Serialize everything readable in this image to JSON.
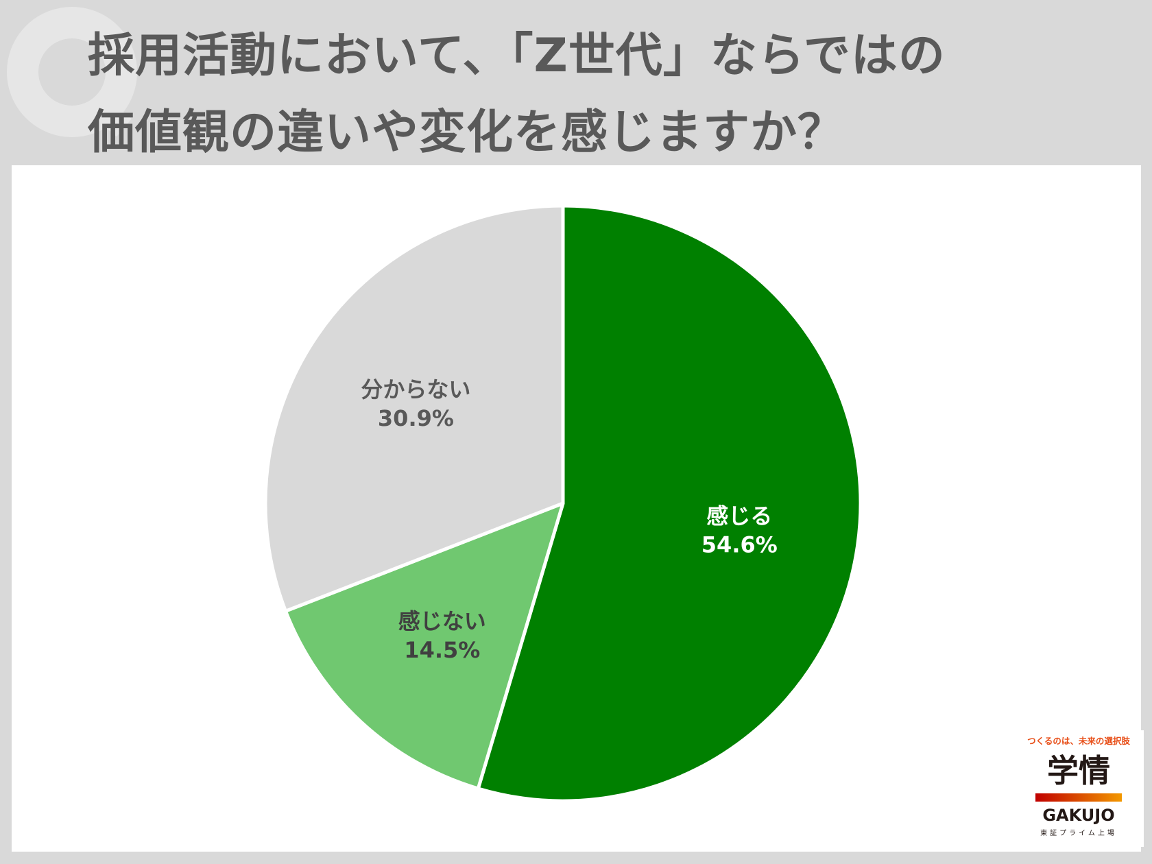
{
  "title": {
    "line1": "採用活動において、「Z世代」ならではの",
    "line2": "価値観の違いや変化を感じますか？"
  },
  "colors": {
    "background": "#d9d9d9",
    "panel": "#ffffff",
    "title_text": "#595959",
    "q_mark": "#e6e6e6"
  },
  "chart_data": {
    "type": "pie",
    "start_angle": "12 o'clock",
    "direction": "clockwise",
    "slices": [
      {
        "label": "感じる",
        "value": 54.6,
        "display": "54.6%",
        "color": "#008000",
        "label_color": "#ffffff"
      },
      {
        "label": "感じない",
        "value": 14.5,
        "display": "14.5%",
        "color": "#70c870",
        "label_color": "#404040"
      },
      {
        "label": "分からない",
        "value": 30.9,
        "display": "30.9%",
        "color": "#d9d9d9",
        "label_color": "#595959"
      }
    ]
  },
  "logo": {
    "tagline": "つくるのは、未来の選択肢",
    "name_jp": "学情",
    "name_en": "GAKUJO",
    "listing": "東証プライム上場",
    "tagline_color": "#e8501a",
    "bar_color_start": "#c00000",
    "bar_color_end": "#f39800",
    "text_color": "#231815"
  }
}
